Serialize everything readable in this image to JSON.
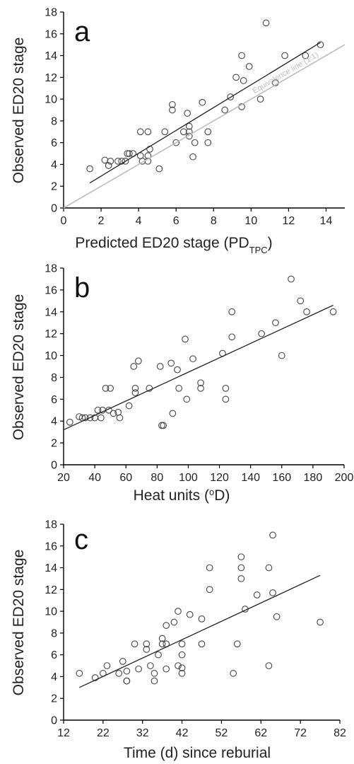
{
  "chart_data": [
    {
      "type": "scatter",
      "panel": "a",
      "xlabel": "Predicted ED20 stage (PD",
      "xlabel_sub": "TPC",
      "xlabel_close": ")",
      "ylabel": "Observed ED20 stage",
      "xlim": [
        0,
        15
      ],
      "ylim": [
        0,
        18
      ],
      "xticks": [
        0,
        2,
        4,
        6,
        8,
        10,
        12,
        14
      ],
      "yticks": [
        0,
        2,
        4,
        6,
        8,
        10,
        12,
        14,
        16,
        18
      ],
      "reference_line_label": "Equivalence line (1:1)",
      "reference_line": [
        [
          0,
          0
        ],
        [
          15,
          15
        ]
      ],
      "fit_line": [
        [
          1.4,
          2.3
        ],
        [
          13.7,
          15.2
        ]
      ],
      "points": [
        [
          1.4,
          3.6
        ],
        [
          2.2,
          4.4
        ],
        [
          2.4,
          3.9
        ],
        [
          2.5,
          4.3
        ],
        [
          2.9,
          4.3
        ],
        [
          3.1,
          4.3
        ],
        [
          3.3,
          4.3
        ],
        [
          3.4,
          5.0
        ],
        [
          3.5,
          5.0
        ],
        [
          3.7,
          5.0
        ],
        [
          4.1,
          4.8
        ],
        [
          4.1,
          7.0
        ],
        [
          4.2,
          4.3
        ],
        [
          4.5,
          4.3
        ],
        [
          4.5,
          4.8
        ],
        [
          4.5,
          7.0
        ],
        [
          4.6,
          5.4
        ],
        [
          5.1,
          3.6
        ],
        [
          5.4,
          7.0
        ],
        [
          5.8,
          9.5
        ],
        [
          5.8,
          9.0
        ],
        [
          6.0,
          6.0
        ],
        [
          6.4,
          7.0
        ],
        [
          6.6,
          8.7
        ],
        [
          6.7,
          7.5
        ],
        [
          6.7,
          7.0
        ],
        [
          6.7,
          6.6
        ],
        [
          6.9,
          4.7
        ],
        [
          7.0,
          6.0
        ],
        [
          7.4,
          9.7
        ],
        [
          7.7,
          7.0
        ],
        [
          7.7,
          6.0
        ],
        [
          8.6,
          9.0
        ],
        [
          8.9,
          10.2
        ],
        [
          9.2,
          12.0
        ],
        [
          9.5,
          14.0
        ],
        [
          9.5,
          9.3
        ],
        [
          9.6,
          11.7
        ],
        [
          9.9,
          13.0
        ],
        [
          10.5,
          10.0
        ],
        [
          10.8,
          17.0
        ],
        [
          11.3,
          11.5
        ],
        [
          11.8,
          14.0
        ],
        [
          12.9,
          14.0
        ],
        [
          13.7,
          15.0
        ]
      ]
    },
    {
      "type": "scatter",
      "panel": "b",
      "xlabel": "Heat units (",
      "xlabel_sup": "o",
      "xlabel_close": "D)",
      "ylabel": "Observed ED20 stage",
      "xlim": [
        20,
        200
      ],
      "ylim": [
        0,
        18
      ],
      "xticks": [
        20,
        40,
        60,
        80,
        100,
        120,
        140,
        160,
        180,
        200
      ],
      "yticks": [
        0,
        2,
        4,
        6,
        8,
        10,
        12,
        14,
        16,
        18
      ],
      "fit_line": [
        [
          20,
          3.2
        ],
        [
          193,
          14.6
        ]
      ],
      "points": [
        [
          24,
          3.9
        ],
        [
          30,
          4.4
        ],
        [
          32,
          4.3
        ],
        [
          34,
          4.3
        ],
        [
          37,
          4.3
        ],
        [
          40,
          4.3
        ],
        [
          42,
          5.0
        ],
        [
          44,
          4.3
        ],
        [
          45,
          5.0
        ],
        [
          47,
          7.0
        ],
        [
          49,
          5.0
        ],
        [
          50,
          7.0
        ],
        [
          52,
          4.7
        ],
        [
          55,
          4.8
        ],
        [
          56,
          4.3
        ],
        [
          62,
          5.4
        ],
        [
          65,
          9.0
        ],
        [
          66,
          6.6
        ],
        [
          66,
          7.0
        ],
        [
          68,
          9.5
        ],
        [
          75,
          7.0
        ],
        [
          82,
          9.0
        ],
        [
          83,
          3.6
        ],
        [
          84,
          3.6
        ],
        [
          89,
          9.3
        ],
        [
          90,
          4.7
        ],
        [
          93,
          8.7
        ],
        [
          94,
          7.0
        ],
        [
          98,
          11.5
        ],
        [
          99,
          6.0
        ],
        [
          103,
          9.7
        ],
        [
          108,
          7.5
        ],
        [
          108,
          7.0
        ],
        [
          122,
          10.2
        ],
        [
          124,
          7.0
        ],
        [
          124,
          6.0
        ],
        [
          128,
          14.0
        ],
        [
          128,
          11.7
        ],
        [
          147,
          12.0
        ],
        [
          156,
          13.0
        ],
        [
          160,
          10.0
        ],
        [
          166,
          17.0
        ],
        [
          172,
          15.0
        ],
        [
          176,
          14.0
        ],
        [
          193,
          14.0
        ]
      ]
    },
    {
      "type": "scatter",
      "panel": "c",
      "xlabel": "Time (d) since reburial",
      "ylabel": "Observed ED20 stage",
      "xlim": [
        12,
        82
      ],
      "ylim": [
        0,
        18
      ],
      "xticks": [
        12,
        22,
        32,
        42,
        52,
        62,
        72,
        82
      ],
      "yticks": [
        0,
        2,
        4,
        6,
        8,
        10,
        12,
        14,
        16,
        18
      ],
      "fit_line": [
        [
          16,
          3.0
        ],
        [
          77,
          13.3
        ]
      ],
      "points": [
        [
          16,
          4.3
        ],
        [
          20,
          3.9
        ],
        [
          22,
          4.3
        ],
        [
          23,
          5.0
        ],
        [
          26,
          4.3
        ],
        [
          27,
          5.4
        ],
        [
          28,
          4.5
        ],
        [
          28,
          3.6
        ],
        [
          28,
          3.6
        ],
        [
          30,
          7.0
        ],
        [
          31,
          4.7
        ],
        [
          33,
          6.5
        ],
        [
          33,
          7.0
        ],
        [
          34,
          5.0
        ],
        [
          35,
          3.6
        ],
        [
          35,
          4.3
        ],
        [
          36,
          6.0
        ],
        [
          37,
          7.5
        ],
        [
          37,
          7.0
        ],
        [
          38,
          7.0
        ],
        [
          38,
          4.7
        ],
        [
          38,
          8.7
        ],
        [
          40,
          9.0
        ],
        [
          41,
          5.0
        ],
        [
          41,
          10.0
        ],
        [
          42,
          4.3
        ],
        [
          42,
          4.8
        ],
        [
          42,
          6.0
        ],
        [
          42,
          7.0
        ],
        [
          44,
          9.7
        ],
        [
          47,
          9.3
        ],
        [
          47,
          7.0
        ],
        [
          49,
          14.0
        ],
        [
          49,
          12.0
        ],
        [
          55,
          4.3
        ],
        [
          56,
          7.0
        ],
        [
          57,
          15.0
        ],
        [
          57,
          14.0
        ],
        [
          57,
          13.0
        ],
        [
          58,
          10.2
        ],
        [
          61,
          11.5
        ],
        [
          64,
          14.0
        ],
        [
          64,
          5.0
        ],
        [
          65,
          17.0
        ],
        [
          65,
          11.7
        ],
        [
          66,
          9.5
        ],
        [
          77,
          9.0
        ]
      ]
    }
  ]
}
